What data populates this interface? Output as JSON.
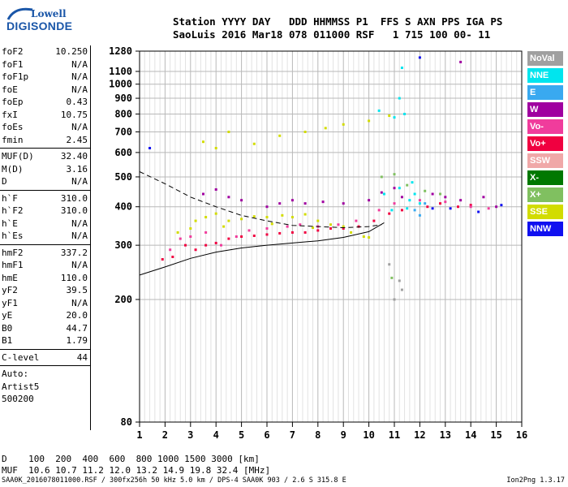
{
  "logo": {
    "line1": "Lowell",
    "line2": "DIGISONDE"
  },
  "header": {
    "line1": "Station YYYY DAY   DDD HHMMSS P1  FFS S AXN PPS IGA PS",
    "line2": "SaoLuis 2016 Mar18 078 011000 RSF   1 715 100 00- 11"
  },
  "params": {
    "group1": [
      {
        "name": "foF2",
        "value": "10.250"
      },
      {
        "name": "foF1",
        "value": "N/A"
      },
      {
        "name": "foF1p",
        "value": "N/A"
      },
      {
        "name": "foE",
        "value": "N/A"
      },
      {
        "name": "foEp",
        "value": "0.43"
      },
      {
        "name": "fxI",
        "value": "10.75"
      },
      {
        "name": "foEs",
        "value": "N/A"
      },
      {
        "name": "fmin",
        "value": "2.45"
      }
    ],
    "group2": [
      {
        "name": "MUF(D)",
        "value": "32.40"
      },
      {
        "name": "M(D)",
        "value": "3.16"
      },
      {
        "name": "D",
        "value": "N/A"
      }
    ],
    "group3": [
      {
        "name": "h`F",
        "value": "310.0"
      },
      {
        "name": "h`F2",
        "value": "310.0"
      },
      {
        "name": "h`E",
        "value": "N/A"
      },
      {
        "name": "h`Es",
        "value": "N/A"
      }
    ],
    "group4": [
      {
        "name": "hmF2",
        "value": "337.2"
      },
      {
        "name": "hmF1",
        "value": "N/A"
      },
      {
        "name": "hmE",
        "value": "110.0"
      },
      {
        "name": "yF2",
        "value": "39.5"
      },
      {
        "name": "yF1",
        "value": "N/A"
      },
      {
        "name": "yE",
        "value": "20.0"
      },
      {
        "name": "B0",
        "value": "44.7"
      },
      {
        "name": "B1",
        "value": "1.79"
      }
    ],
    "group5": [
      {
        "name": "C-level",
        "value": "44"
      }
    ],
    "autoscale": [
      "Auto:",
      "Artist5",
      "500200"
    ]
  },
  "bottom": {
    "d_row": "D    100  200  400  600  800 1000 1500 3000 [km]",
    "muf_row": "MUF  10.6 10.7 11.2 12.0 13.2 14.9 19.8 32.4 [MHz]",
    "footer": "SAA0K_2016078011000.RSF / 300fx256h 50 kHz 5.0 km / DPS-4 SAA0K 903 / 2.6 S 315.8 E",
    "version": "Ion2Png 1.3.17"
  },
  "legend": [
    {
      "label": "NoVal",
      "color": "#a0a0a0"
    },
    {
      "label": "NNE",
      "color": "#00e5ee"
    },
    {
      "label": "E",
      "color": "#39a9f0"
    },
    {
      "label": "W",
      "color": "#a000a0"
    },
    {
      "label": "Vo-",
      "color": "#f03c9c"
    },
    {
      "label": "Vo+",
      "color": "#f00040"
    },
    {
      "label": "SSW",
      "color": "#f0a8a8"
    },
    {
      "label": "X-",
      "color": "#007800"
    },
    {
      "label": "X+",
      "color": "#80c060"
    },
    {
      "label": "SSE",
      "color": "#d2dc00"
    },
    {
      "label": "NNW",
      "color": "#1010f0"
    }
  ],
  "chart_data": {
    "type": "scatter",
    "title": "",
    "xlabel": "",
    "ylabel": "",
    "x_ticks": [
      1,
      2,
      3,
      4,
      5,
      6,
      7,
      8,
      9,
      10,
      11,
      12,
      13,
      14,
      15,
      16
    ],
    "y_ticks": [
      80,
      200,
      300,
      400,
      500,
      600,
      700,
      800,
      900,
      1000,
      1100,
      1280
    ],
    "xlim": [
      1,
      16
    ],
    "ylim": [
      80,
      1280
    ],
    "y_scale": "log",
    "grid": true,
    "series": [
      {
        "name": "SSE",
        "color": "#d2dc00",
        "points": [
          [
            2.5,
            330
          ],
          [
            3.2,
            360
          ],
          [
            3.6,
            370
          ],
          [
            4,
            380
          ],
          [
            4.5,
            360
          ],
          [
            5,
            365
          ],
          [
            5.5,
            372
          ],
          [
            6,
            370
          ],
          [
            6.6,
            375
          ],
          [
            7,
            370
          ],
          [
            7.5,
            378
          ],
          [
            8,
            360
          ],
          [
            8.5,
            350
          ],
          [
            9,
            345
          ],
          [
            9.3,
            330
          ],
          [
            9.8,
            320
          ],
          [
            10,
            318
          ],
          [
            3.5,
            650
          ],
          [
            4,
            620
          ],
          [
            4.5,
            700
          ],
          [
            5.5,
            640
          ],
          [
            6.5,
            680
          ],
          [
            7.5,
            700
          ],
          [
            8.3,
            720
          ],
          [
            9,
            740
          ],
          [
            10,
            760
          ],
          [
            10.8,
            790
          ],
          [
            3,
            340
          ],
          [
            4.3,
            345
          ],
          [
            6.2,
            352
          ],
          [
            7.8,
            342
          ]
        ]
      },
      {
        "name": "Vo+",
        "color": "#f00040",
        "points": [
          [
            1.9,
            270
          ],
          [
            2.3,
            275
          ],
          [
            2.8,
            300
          ],
          [
            3.2,
            290
          ],
          [
            3.6,
            300
          ],
          [
            4,
            305
          ],
          [
            4.5,
            315
          ],
          [
            5,
            320
          ],
          [
            5.5,
            322
          ],
          [
            6,
            325
          ],
          [
            6.5,
            328
          ],
          [
            7,
            330
          ],
          [
            7.5,
            330
          ],
          [
            8,
            335
          ],
          [
            8.5,
            340
          ],
          [
            9,
            340
          ],
          [
            9.6,
            345
          ],
          [
            10.2,
            360
          ],
          [
            10.8,
            380
          ],
          [
            11.3,
            390
          ],
          [
            12.3,
            400
          ],
          [
            12.8,
            410
          ],
          [
            13.5,
            400
          ],
          [
            14,
            405
          ]
        ]
      },
      {
        "name": "Vo-",
        "color": "#f03c9c",
        "points": [
          [
            2.2,
            290
          ],
          [
            2.6,
            315
          ],
          [
            3,
            320
          ],
          [
            3.6,
            330
          ],
          [
            4.2,
            300
          ],
          [
            4.8,
            320
          ],
          [
            5.3,
            335
          ],
          [
            6,
            340
          ],
          [
            6.8,
            345
          ],
          [
            7.3,
            350
          ],
          [
            8,
            345
          ],
          [
            8.8,
            350
          ],
          [
            9.5,
            360
          ],
          [
            10.4,
            390
          ],
          [
            11,
            410
          ],
          [
            12,
            420
          ],
          [
            13,
            415
          ],
          [
            14,
            400
          ],
          [
            14.7,
            395
          ]
        ]
      },
      {
        "name": "W",
        "color": "#a000a0",
        "points": [
          [
            3.5,
            440
          ],
          [
            4,
            455
          ],
          [
            4.5,
            430
          ],
          [
            5,
            420
          ],
          [
            6,
            400
          ],
          [
            6.5,
            410
          ],
          [
            7,
            420
          ],
          [
            7.5,
            410
          ],
          [
            8.2,
            415
          ],
          [
            9,
            410
          ],
          [
            10,
            420
          ],
          [
            10.5,
            445
          ],
          [
            11,
            460
          ],
          [
            11.3,
            430
          ],
          [
            12.5,
            440
          ],
          [
            13,
            430
          ],
          [
            13.6,
            420
          ],
          [
            14.5,
            430
          ],
          [
            15,
            400
          ],
          [
            13.6,
            1180
          ]
        ]
      },
      {
        "name": "NNE",
        "color": "#00e5ee",
        "points": [
          [
            11.6,
            420
          ],
          [
            11.8,
            440
          ],
          [
            12,
            410
          ],
          [
            11.2,
            460
          ],
          [
            11.5,
            395
          ],
          [
            10.6,
            440
          ],
          [
            11,
            780
          ],
          [
            11.4,
            800
          ],
          [
            10.4,
            820
          ],
          [
            11.2,
            900
          ],
          [
            11.3,
            1130
          ],
          [
            10.9,
            390
          ],
          [
            11.7,
            480
          ]
        ]
      },
      {
        "name": "NNW",
        "color": "#1010f0",
        "points": [
          [
            1.4,
            620
          ],
          [
            12,
            1220
          ],
          [
            13.2,
            395
          ],
          [
            14.3,
            385
          ],
          [
            15.2,
            405
          ],
          [
            12.5,
            395
          ]
        ]
      },
      {
        "name": "X+",
        "color": "#80c060",
        "points": [
          [
            10.5,
            500
          ],
          [
            11,
            510
          ],
          [
            11.5,
            470
          ],
          [
            12.2,
            450
          ],
          [
            12.8,
            440
          ],
          [
            10.9,
            235
          ]
        ]
      },
      {
        "name": "NoVal",
        "color": "#a0a0a0",
        "points": [
          [
            11,
            200
          ],
          [
            11.2,
            230
          ],
          [
            10.8,
            260
          ],
          [
            11.3,
            215
          ]
        ]
      },
      {
        "name": "E",
        "color": "#39a9f0",
        "points": [
          [
            11.8,
            390
          ],
          [
            12.2,
            410
          ],
          [
            12,
            375
          ]
        ]
      }
    ],
    "curves": [
      {
        "name": "trace-solid",
        "style": "solid",
        "points": [
          [
            1,
            240
          ],
          [
            2,
            255
          ],
          [
            3,
            272
          ],
          [
            4,
            285
          ],
          [
            5,
            294
          ],
          [
            6,
            300
          ],
          [
            7,
            305
          ],
          [
            8,
            310
          ],
          [
            9,
            318
          ],
          [
            10,
            332
          ],
          [
            10.6,
            355
          ]
        ]
      },
      {
        "name": "profile-dashed",
        "style": "dashed",
        "points": [
          [
            1,
            520
          ],
          [
            2,
            475
          ],
          [
            3,
            430
          ],
          [
            4,
            400
          ],
          [
            5,
            375
          ],
          [
            6,
            360
          ],
          [
            7,
            348
          ],
          [
            8,
            345
          ],
          [
            9,
            342
          ],
          [
            10,
            345
          ],
          [
            10.5,
            350
          ]
        ]
      }
    ]
  }
}
